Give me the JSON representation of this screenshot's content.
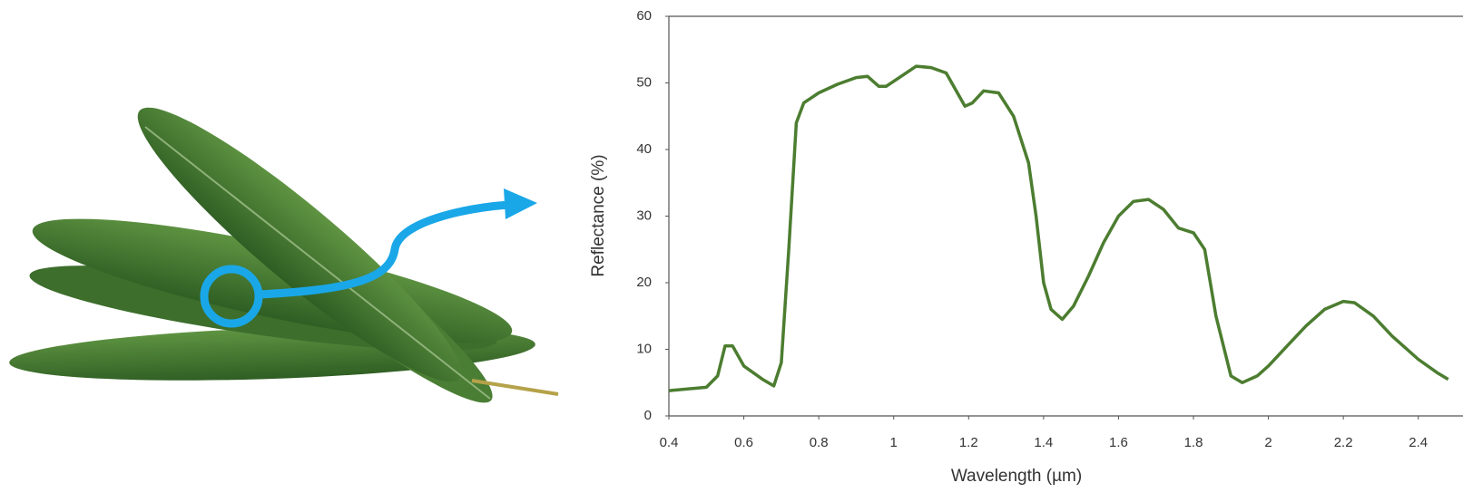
{
  "chart_data": {
    "type": "line",
    "x_label": "Wavelength (µm)",
    "y_label": "Reflectance (%)",
    "xlim": [
      0.4,
      2.5
    ],
    "xticks": [
      0.4,
      0.6,
      0.8,
      1,
      1.2,
      1.4,
      1.6,
      1.8,
      2,
      2.2,
      2.4
    ],
    "ylim": [
      0,
      60
    ],
    "yticks": [
      0,
      10,
      20,
      30,
      40,
      50,
      60
    ],
    "series": [
      {
        "color": "#4c7d30",
        "x": [
          0.4,
          0.5,
          0.53,
          0.55,
          0.57,
          0.6,
          0.65,
          0.68,
          0.7,
          0.72,
          0.74,
          0.76,
          0.8,
          0.85,
          0.9,
          0.93,
          0.96,
          0.98,
          1.02,
          1.06,
          1.1,
          1.14,
          1.17,
          1.19,
          1.21,
          1.24,
          1.28,
          1.32,
          1.36,
          1.38,
          1.4,
          1.42,
          1.45,
          1.48,
          1.52,
          1.56,
          1.6,
          1.64,
          1.68,
          1.72,
          1.76,
          1.8,
          1.83,
          1.86,
          1.9,
          1.93,
          1.97,
          2.0,
          2.05,
          2.1,
          2.15,
          2.2,
          2.23,
          2.28,
          2.33,
          2.4,
          2.45,
          2.48
        ],
        "values": [
          3.8,
          4.3,
          6,
          10.5,
          10.5,
          7.5,
          5.5,
          4.5,
          8,
          25,
          44,
          47,
          48.5,
          49.8,
          50.8,
          51,
          49.5,
          49.5,
          51,
          52.5,
          52.3,
          51.5,
          48.5,
          46.5,
          47,
          48.8,
          48.5,
          45,
          38,
          30,
          20,
          16,
          14.5,
          16.5,
          21,
          26,
          30,
          32.2,
          32.5,
          31,
          28.2,
          27.5,
          25,
          15,
          6,
          5,
          6,
          7.5,
          10.5,
          13.5,
          16,
          17.2,
          17,
          15,
          12,
          8.5,
          6.5,
          5.5
        ]
      }
    ]
  }
}
